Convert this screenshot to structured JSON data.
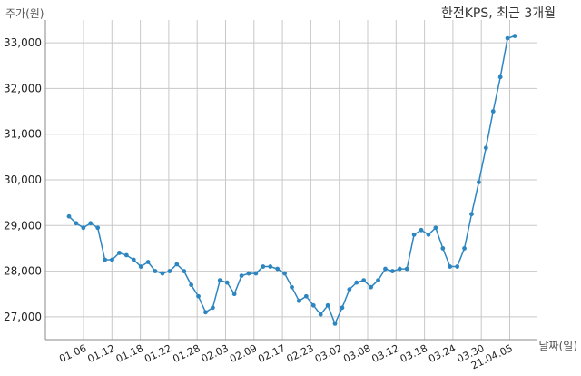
{
  "chart_data": {
    "type": "line",
    "title": "한전KPS, 최근 3개월",
    "ylabel": "주가(원)",
    "xlabel": "날짜(일)",
    "ylim": [
      26500,
      33500
    ],
    "yticks": [
      27000,
      28000,
      29000,
      30000,
      31000,
      32000,
      33000
    ],
    "ytick_labels": [
      "27,000",
      "28,000",
      "29,000",
      "30,000",
      "31,000",
      "32,000",
      "33,000"
    ],
    "xticks": [
      "01.06",
      "01.12",
      "01.18",
      "01.22",
      "01.28",
      "02.03",
      "02.09",
      "02.17",
      "02.23",
      "03.02",
      "03.08",
      "03.12",
      "03.18",
      "03.24",
      "03.30",
      "21.04.05"
    ],
    "grid": true,
    "line_color": "#2e86c1",
    "series": [
      {
        "values": [
          29200,
          29050,
          28950,
          29050,
          28950,
          28250,
          28250,
          28400,
          28350,
          28250,
          28100,
          28200,
          28000,
          27950,
          28000,
          28150,
          28000,
          27700,
          27450,
          27100,
          27200,
          27800,
          27750,
          27500,
          27900,
          27950,
          27950,
          28100,
          28100,
          28050,
          27950,
          27650,
          27350,
          27450,
          27250,
          27050,
          27250,
          26850,
          27200,
          27600,
          27750,
          27800,
          27650,
          27800,
          28050,
          28000,
          28050,
          28050,
          28800,
          28900,
          28800,
          28950,
          28500,
          28100,
          28100,
          28500,
          29250,
          29950,
          30700,
          31500,
          32250,
          33100,
          33150
        ]
      }
    ]
  }
}
